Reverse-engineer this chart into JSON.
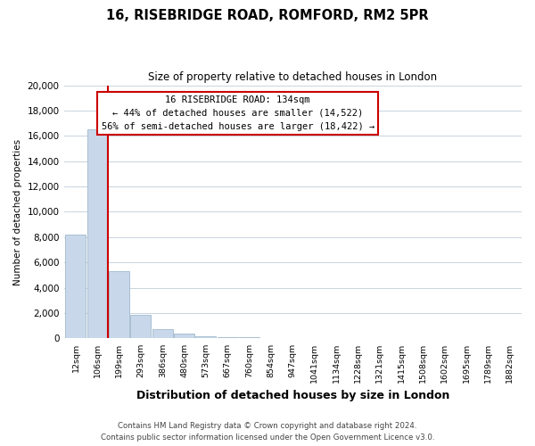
{
  "title": "16, RISEBRIDGE ROAD, ROMFORD, RM2 5PR",
  "subtitle": "Size of property relative to detached houses in London",
  "xlabel": "Distribution of detached houses by size in London",
  "ylabel": "Number of detached properties",
  "bar_labels": [
    "12sqm",
    "106sqm",
    "199sqm",
    "293sqm",
    "386sqm",
    "480sqm",
    "573sqm",
    "667sqm",
    "760sqm",
    "854sqm",
    "947sqm",
    "1041sqm",
    "1134sqm",
    "1228sqm",
    "1321sqm",
    "1415sqm",
    "1508sqm",
    "1602sqm",
    "1695sqm",
    "1789sqm",
    "1882sqm"
  ],
  "bar_heights": [
    8200,
    16500,
    5300,
    1850,
    750,
    350,
    200,
    130,
    100,
    0,
    0,
    0,
    0,
    0,
    0,
    0,
    0,
    0,
    0,
    0,
    0
  ],
  "bar_color": "#c8d8ea",
  "bar_edge_color": "#a0b8cc",
  "ylim": [
    0,
    20000
  ],
  "yticks": [
    0,
    2000,
    4000,
    6000,
    8000,
    10000,
    12000,
    14000,
    16000,
    18000,
    20000
  ],
  "vline_color": "#cc0000",
  "annotation_title": "16 RISEBRIDGE ROAD: 134sqm",
  "annotation_line1": "← 44% of detached houses are smaller (14,522)",
  "annotation_line2": "56% of semi-detached houses are larger (18,422) →",
  "footer_line1": "Contains HM Land Registry data © Crown copyright and database right 2024.",
  "footer_line2": "Contains public sector information licensed under the Open Government Licence v3.0.",
  "background_color": "#ffffff",
  "grid_color": "#c8d4de"
}
